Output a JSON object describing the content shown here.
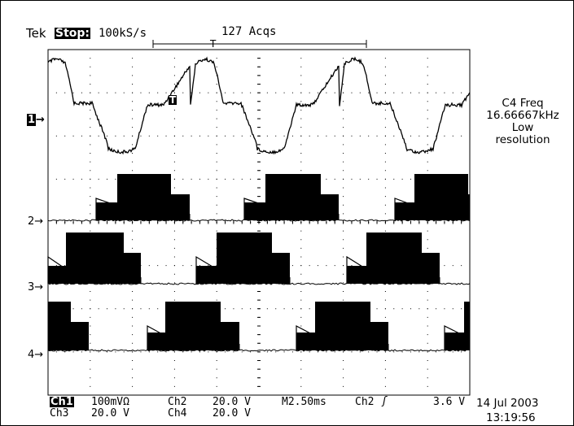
{
  "header": {
    "brand": "Tek",
    "run_state": "Stop:",
    "sample_rate": "100kS/s",
    "acquisitions": "127 Acqs",
    "trigger_glyph": "T"
  },
  "channel_markers": [
    {
      "label": "1",
      "arrow": "→",
      "inverted": true
    },
    {
      "label": "2",
      "arrow": "→",
      "inverted": false
    },
    {
      "label": "3",
      "arrow": "→",
      "inverted": false
    },
    {
      "label": "4",
      "arrow": "→",
      "inverted": false
    }
  ],
  "trace_labels": {
    "trigger_level_marker": "T"
  },
  "measurement": {
    "line1": "C4 Freq",
    "line2": "16.66667kHz",
    "line3": "Low",
    "line4": "resolution"
  },
  "status_bar": {
    "ch1_label": "Ch1",
    "ch1_scale": "100mVΩ",
    "ch2_label": "Ch2",
    "ch2_scale": "20.0 V",
    "ch3_label": "Ch3",
    "ch3_scale": "20.0 V",
    "ch4_label": "Ch4",
    "ch4_scale": "20.0 V",
    "timebase": "M2.50ms",
    "trigger_source": "Ch2",
    "trigger_slope": "ʃ",
    "trigger_level": "3.6 V",
    "date": "14 Jul 2003",
    "time": "13:19:56"
  },
  "colors": {
    "background": "#ffffff",
    "trace": "#000000",
    "grid": "#000000"
  }
}
